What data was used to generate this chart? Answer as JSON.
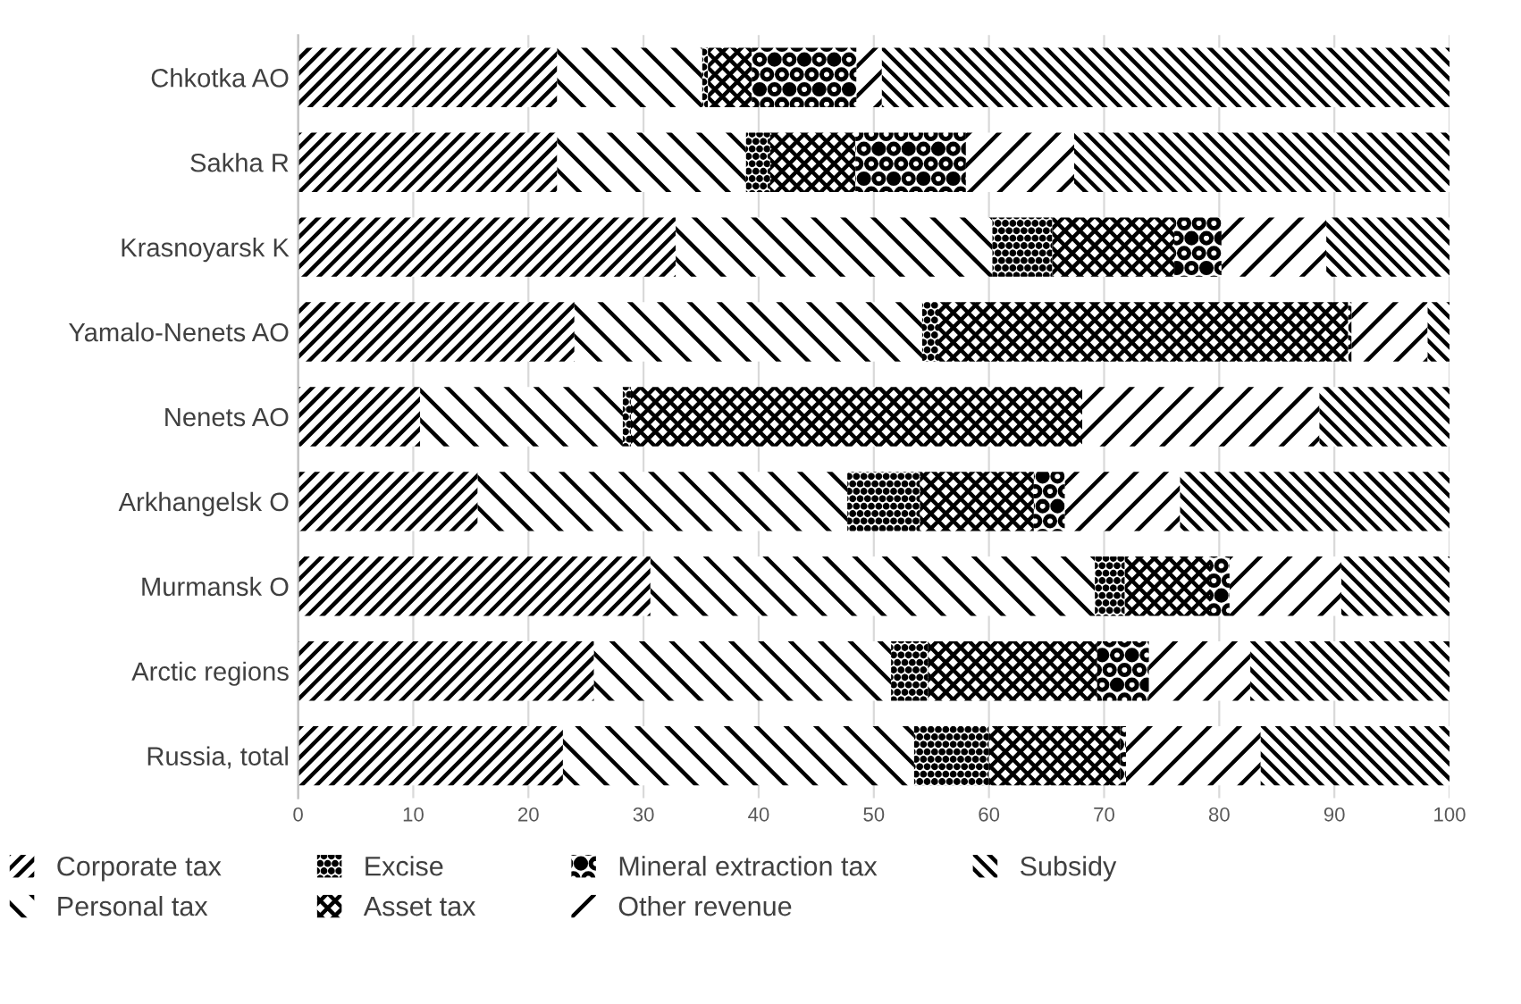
{
  "chart_data": {
    "type": "bar",
    "orientation": "horizontal",
    "stacked": true,
    "legend": "bottom",
    "grid": "x",
    "categories": [
      "Chkotka AO",
      "Sakha R",
      "Krasnoyarsk K",
      "Yamalo-Nenets AO",
      "Nenets AO",
      "Arkhangelsk O",
      "Murmansk O",
      "Arctic regions",
      "Russia, total"
    ],
    "xlim": [
      0,
      100
    ],
    "xticks": [
      0,
      10,
      20,
      30,
      40,
      50,
      60,
      70,
      80,
      90,
      100
    ],
    "series": [
      {
        "name": "Corporate tax",
        "color": "#000000",
        "values": [
          22.5,
          22.5,
          32.8,
          24.0,
          10.6,
          15.6,
          30.6,
          25.7,
          23.0
        ]
      },
      {
        "name": "Personal tax",
        "color": "#000000",
        "values": [
          12.6,
          16.4,
          27.5,
          30.2,
          17.6,
          32.1,
          38.6,
          25.8,
          30.5
        ]
      },
      {
        "name": "Excise",
        "color": "#000000",
        "values": [
          0.5,
          2.1,
          5.2,
          1.4,
          0.7,
          6.3,
          2.6,
          3.2,
          6.5
        ]
      },
      {
        "name": "Asset tax",
        "color": "#000000",
        "values": [
          3.8,
          7.4,
          10.6,
          35.6,
          39.2,
          9.9,
          7.4,
          14.7,
          11.4
        ]
      },
      {
        "name": "Mineral extraction tax",
        "color": "#000000",
        "values": [
          9.1,
          9.6,
          4.1,
          0.3,
          0,
          2.7,
          1.7,
          4.5,
          0.5
        ]
      },
      {
        "name": "Other revenue",
        "color": "#000000",
        "values": [
          2.2,
          9.4,
          9.1,
          6.6,
          20.6,
          10.0,
          9.7,
          8.8,
          11.7
        ]
      },
      {
        "name": "Subsidy",
        "color": "#000000",
        "values": [
          49.3,
          32.6,
          10.7,
          1.9,
          11.3,
          23.4,
          9.4,
          17.3,
          16.4
        ]
      }
    ]
  }
}
